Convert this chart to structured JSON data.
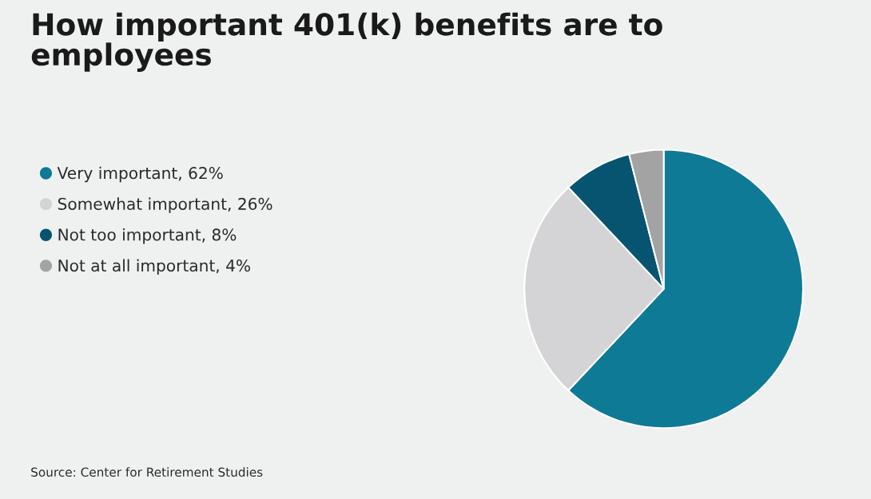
{
  "chart_data": {
    "type": "pie",
    "title": "How important 401(k) benefits are to\nemployees",
    "categories": [
      "Very important, 62%",
      "Somewhat important, 26%",
      "Not too important, 8%",
      "Not at all important, 4%"
    ],
    "values": [
      62,
      26,
      8,
      4
    ],
    "colors": [
      "#0e7a96",
      "#d4d3d5",
      "#075470",
      "#a3a3a3"
    ],
    "legend": "left",
    "annotations": [
      "Source: Center for Retirement Studies"
    ]
  }
}
